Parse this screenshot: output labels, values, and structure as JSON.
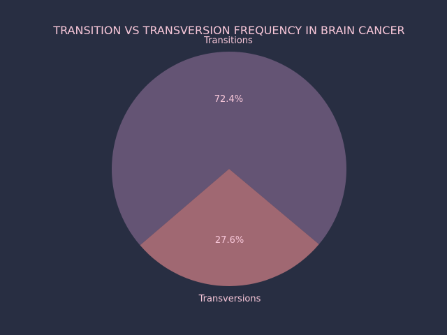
{
  "chart_data": {
    "type": "pie",
    "title": "TRANSITION VS TRANSVERSION FREQUENCY IN BRAIN CANCER",
    "categories": [
      "Transitions",
      "Transversions"
    ],
    "values": [
      72.4,
      27.6
    ],
    "percent_labels": [
      "72.4%",
      "27.6%"
    ],
    "colors": [
      "#645474",
      "#a06872"
    ],
    "start_angle_deg": -40,
    "direction": "counterclockwise",
    "legend": "none"
  },
  "colors": {
    "background": "#282e42",
    "text": "#f6c6d8"
  }
}
